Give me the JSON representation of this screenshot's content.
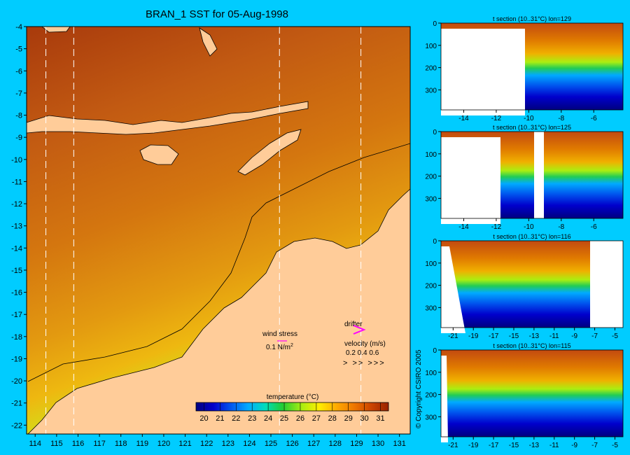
{
  "title": "BRAN_1 SST for 05-Aug-1998",
  "copyright": "© Copyright CSIRO 2005",
  "main_map": {
    "type": "heatmap",
    "x_ticks": [
      "114",
      "115",
      "116",
      "117",
      "118",
      "119",
      "120",
      "121",
      "122",
      "123",
      "124",
      "125",
      "126",
      "127",
      "128",
      "129",
      "130",
      "131"
    ],
    "y_ticks": [
      "-4",
      "-5",
      "-6",
      "-7",
      "-8",
      "-9",
      "-10",
      "-11",
      "-12",
      "-13",
      "-14",
      "-15",
      "-16",
      "-17",
      "-18",
      "-19",
      "-20",
      "-21",
      "-22"
    ],
    "xlim": [
      113.6,
      131.5
    ],
    "ylim": [
      -22.4,
      -4
    ],
    "section_lons": [
      114.5,
      115.8,
      125.4,
      129.2
    ],
    "legend": {
      "wind_label": "wind stress",
      "wind_value": "0.1 N/m",
      "wind_exp": "2",
      "drifter_label": "drifter",
      "velocity_label": "velocity (m/s)",
      "velocity_scale": "0.2 0.4 0.6",
      "velocity_arrows": "> >> >>>"
    },
    "colorbar": {
      "label": "temperature (°C)",
      "ticks": [
        "20",
        "21",
        "22",
        "23",
        "24",
        "25",
        "26",
        "27",
        "28",
        "29",
        "30",
        "31"
      ],
      "range": [
        19.5,
        31.5
      ],
      "colors": [
        "#000080",
        "#0000cc",
        "#0055ee",
        "#00aaff",
        "#00ddbb",
        "#22cc33",
        "#aaee11",
        "#ffee00",
        "#ffaa00",
        "#ee7700",
        "#cc4400",
        "#992200"
      ]
    }
  },
  "sections": [
    {
      "title": "t section (10..31°C) lon=129",
      "x_ticks": [
        "-14",
        "-12",
        "-10",
        "-8",
        "-6"
      ],
      "y_ticks": [
        "0",
        "100",
        "200",
        "300"
      ],
      "xlim": [
        -15.4,
        -4.2
      ],
      "ylim": [
        0,
        390
      ]
    },
    {
      "title": "t section (10..31°C) lon=125",
      "x_ticks": [
        "-14",
        "-12",
        "-10",
        "-8",
        "-6"
      ],
      "y_ticks": [
        "0",
        "100",
        "200",
        "300"
      ],
      "xlim": [
        -15.4,
        -4.2
      ],
      "ylim": [
        0,
        390
      ]
    },
    {
      "title": "t section (10..31°C) lon=116",
      "x_ticks": [
        "-21",
        "-19",
        "-17",
        "-15",
        "-13",
        "-11",
        "-9",
        "-7",
        "-5"
      ],
      "y_ticks": [
        "0",
        "100",
        "200",
        "300"
      ],
      "xlim": [
        -22.2,
        -4.2
      ],
      "ylim": [
        0,
        390
      ]
    },
    {
      "title": "t section (10..31°C) lon=115",
      "x_ticks": [
        "-21",
        "-19",
        "-17",
        "-15",
        "-13",
        "-11",
        "-9",
        "-7",
        "-5"
      ],
      "y_ticks": [
        "0",
        "100",
        "200",
        "300"
      ],
      "xlim": [
        -22.2,
        -4.2
      ],
      "ylim": [
        0,
        390
      ]
    }
  ]
}
